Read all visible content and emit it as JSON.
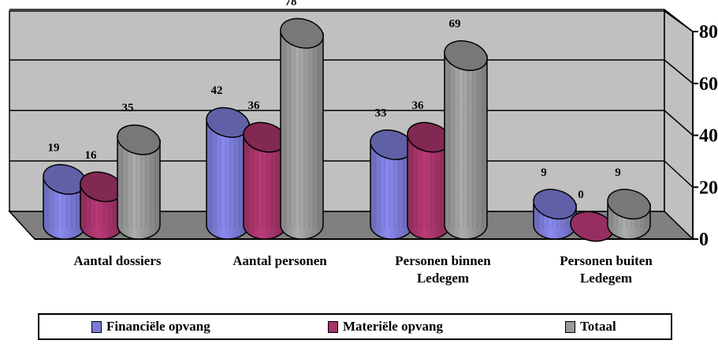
{
  "chart_data": {
    "type": "bar",
    "categories": [
      [
        "Aantal dossiers"
      ],
      [
        "Aantal personen"
      ],
      [
        "Personen binnen",
        "Ledegem"
      ],
      [
        "Personen buiten",
        "Ledegem"
      ]
    ],
    "series": [
      {
        "name": "Financiële opvang",
        "values": [
          19,
          42,
          33,
          9
        ],
        "color": "#7b7bd6"
      },
      {
        "name": "Materiële opvang",
        "values": [
          16,
          36,
          36,
          0
        ],
        "color": "#a6346a"
      },
      {
        "name": "Totaal",
        "values": [
          35,
          78,
          69,
          9
        ],
        "color": "#9a9a9a"
      }
    ],
    "y_ticks": [
      "0",
      "20",
      "40",
      "60",
      "80"
    ],
    "ylim": [
      0,
      80
    ],
    "grid": true,
    "legend_position": "bottom",
    "colors": {
      "wall": "#c0c0c0",
      "floor": "#808080"
    }
  }
}
